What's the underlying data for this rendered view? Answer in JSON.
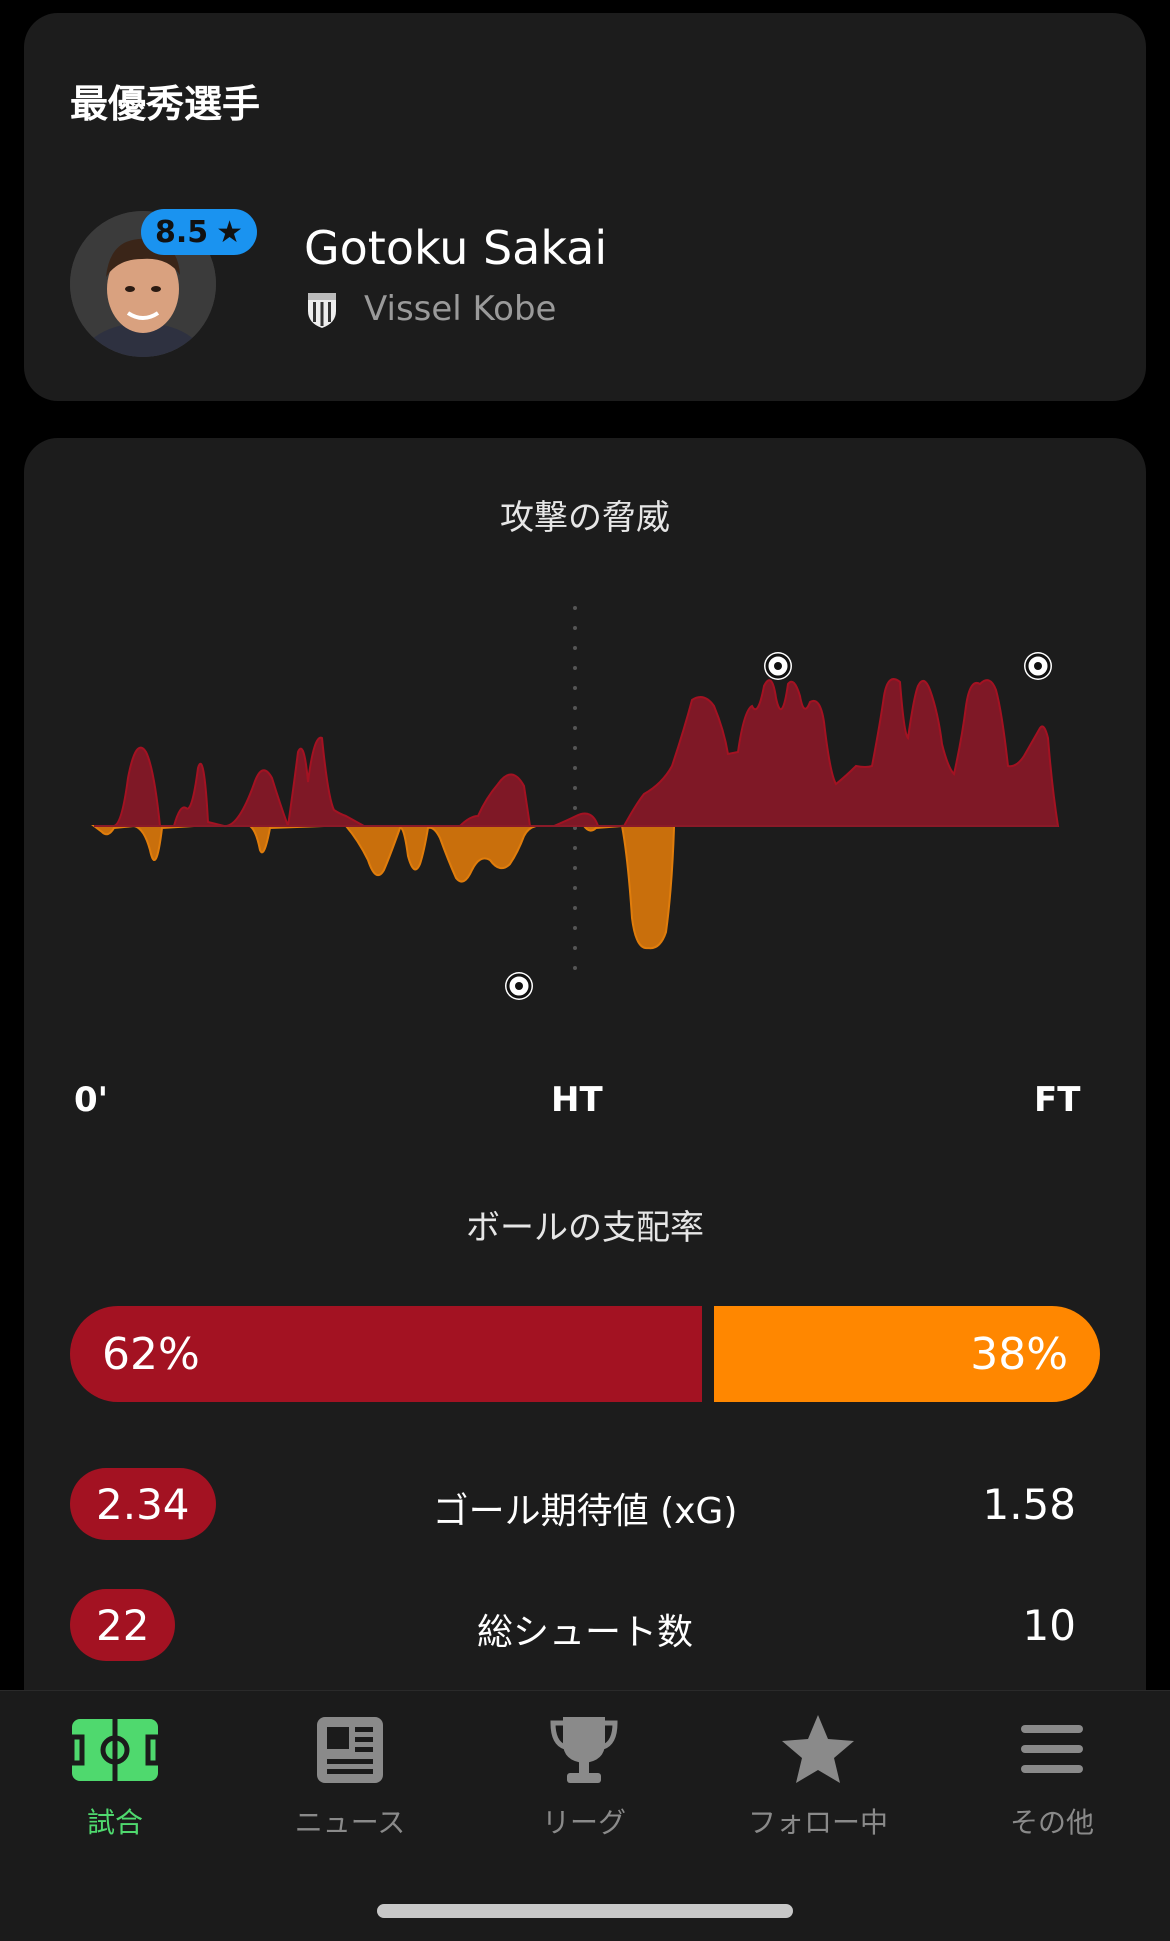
{
  "potm": {
    "title": "最優秀選手",
    "rating": "8.5",
    "player_name": "Gotoku Sakai",
    "team_name": "Vissel Kobe"
  },
  "attack_threat": {
    "title": "攻撃の脅威",
    "axis": {
      "start": "0'",
      "half": "HT",
      "end": "FT"
    },
    "colors": {
      "home": "#8a1a28",
      "away": "#e07d0c"
    }
  },
  "possession": {
    "title": "ボールの支配率",
    "home": "62%",
    "away": "38%",
    "home_value": 62,
    "away_value": 38,
    "colors": {
      "home": "#a31222",
      "away": "#ff8700"
    }
  },
  "stats": [
    {
      "label": "ゴール期待値 (xG)",
      "home": "2.34",
      "away": "1.58"
    },
    {
      "label": "総シュート数",
      "home": "22",
      "away": "10"
    }
  ],
  "tabs": [
    {
      "label": "試合",
      "icon": "pitch-icon",
      "active": true
    },
    {
      "label": "ニュース",
      "icon": "news-icon",
      "active": false
    },
    {
      "label": "リーグ",
      "icon": "trophy-icon",
      "active": false
    },
    {
      "label": "フォロー中",
      "icon": "star-icon",
      "active": false
    },
    {
      "label": "その他",
      "icon": "menu-icon",
      "active": false
    }
  ]
}
